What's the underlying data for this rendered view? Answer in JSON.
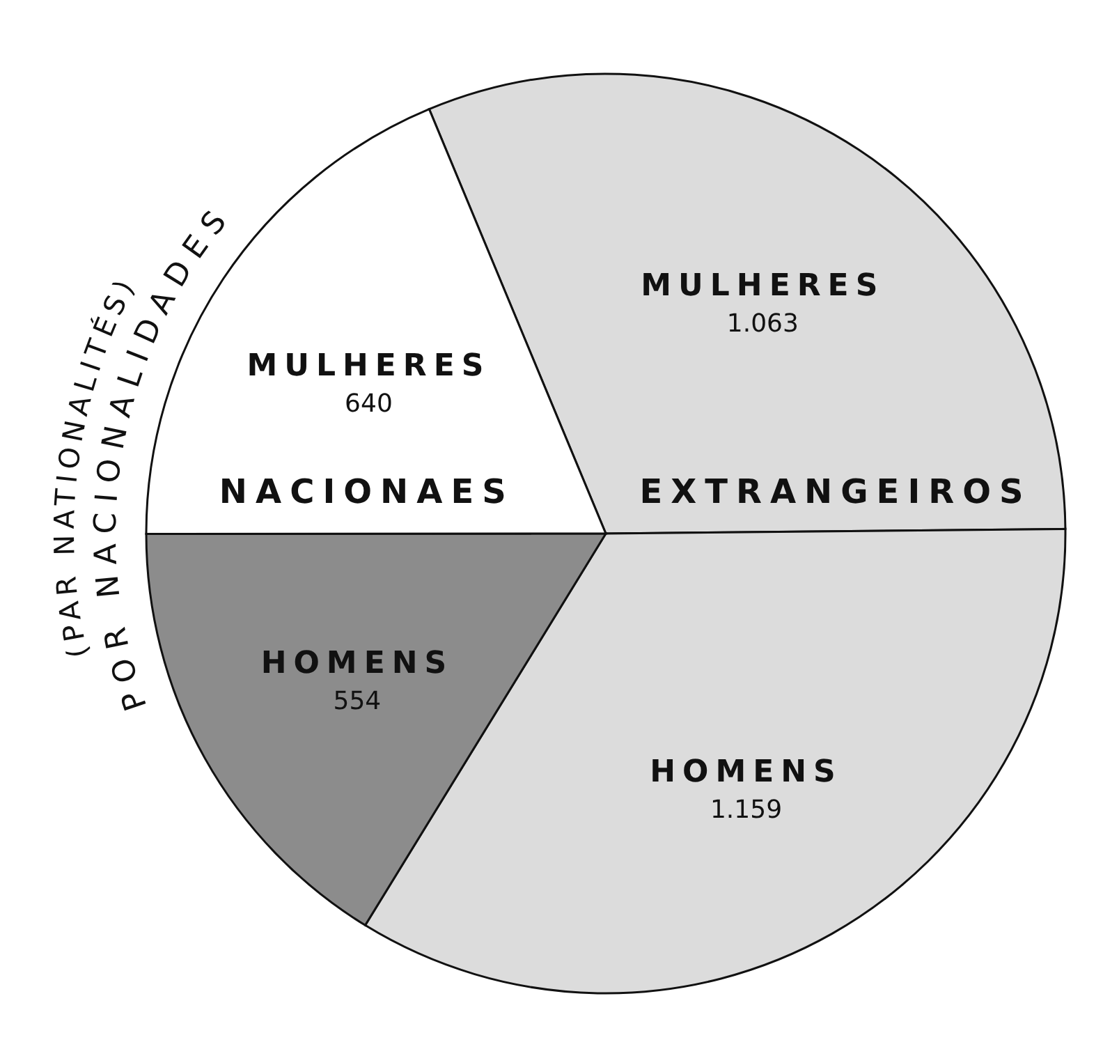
{
  "chart_data": {
    "type": "pie",
    "title": "POR NACIONALIDADES",
    "subtitle": "(PAR NATIONALITÉS)",
    "categories": [
      "MULHERES",
      "HOMENS",
      "HOMENS",
      "MULHERES"
    ],
    "values": [
      1063,
      1159,
      554,
      640
    ],
    "value_labels": [
      "1.063",
      "1.159",
      "554",
      "640"
    ],
    "colors": [
      "#dcdcdc",
      "#dcdcdc",
      "#8c8c8c",
      "#ffffff"
    ],
    "annotations": [
      "EXTRANGEIROS",
      "NACIONAES"
    ]
  }
}
